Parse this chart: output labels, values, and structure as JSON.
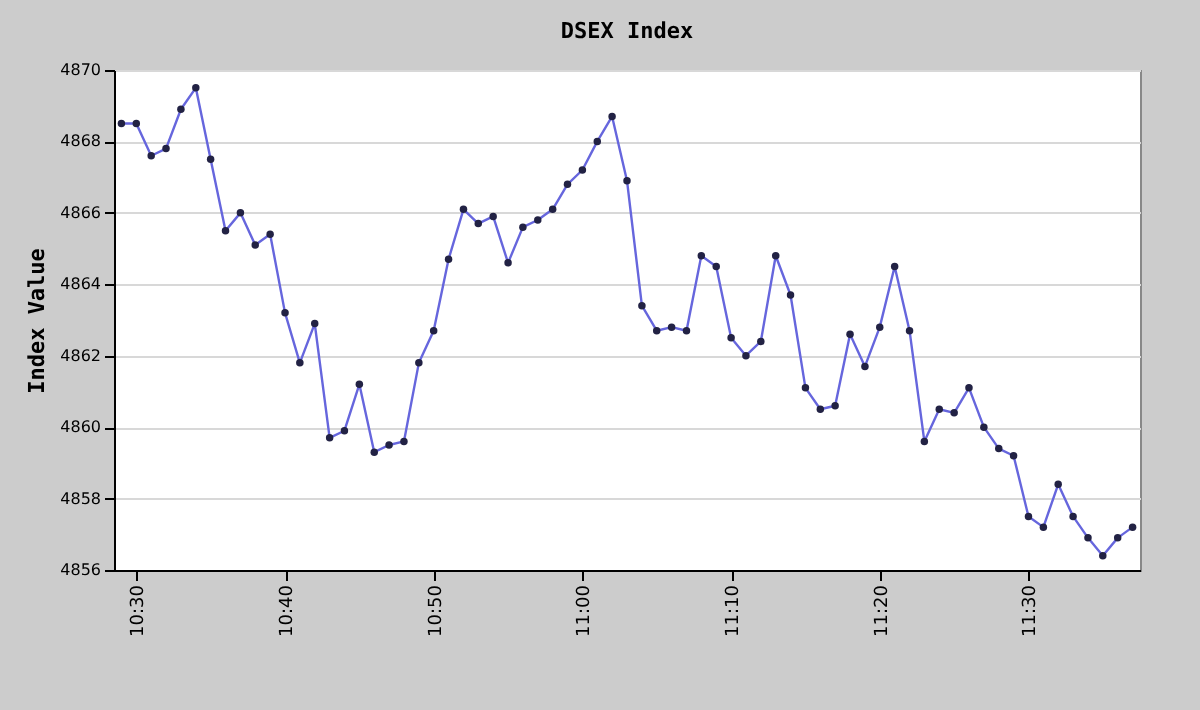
{
  "chart_data": {
    "type": "line",
    "title": "DSEX Index",
    "ylabel": "Index Value",
    "x": [
      10.4833,
      10.5,
      10.5167,
      10.5333,
      10.55,
      10.5667,
      10.5833,
      10.6,
      10.6167,
      10.6333,
      10.65,
      10.6667,
      10.6833,
      10.7,
      10.7167,
      10.7333,
      10.75,
      10.7667,
      10.7833,
      10.8,
      10.8167,
      10.8333,
      10.85,
      10.8667,
      10.8833,
      10.9,
      10.9167,
      10.9333,
      10.95,
      10.9667,
      10.9833,
      11,
      11.0167,
      11.0333,
      11.05,
      11.0667,
      11.0833,
      11.1,
      11.1167,
      11.1333,
      11.15,
      11.1667,
      11.1833,
      11.2,
      11.2167,
      11.2333,
      11.25,
      11.2667,
      11.2833,
      11.3,
      11.3167,
      11.3333,
      11.35,
      11.3667,
      11.3833,
      11.4,
      11.4167,
      11.4333,
      11.45,
      11.4667,
      11.4833,
      11.5,
      11.5167,
      11.5333,
      11.55,
      11.5667,
      11.5833,
      11.6,
      11.6167
    ],
    "series": [
      {
        "color": "#6666dd",
        "values": [
          4868.5,
          4868.5,
          4867.6,
          4867.8,
          4868.9,
          4869.5,
          4867.5,
          4865.5,
          4866.0,
          4865.1,
          4865.4,
          4863.2,
          4861.8,
          4862.9,
          4859.7,
          4859.9,
          4861.2,
          4859.3,
          4859.5,
          4859.6,
          4861.8,
          4862.7,
          4864.7,
          4866.1,
          4865.7,
          4865.9,
          4864.6,
          4865.6,
          4865.8,
          4866.1,
          4866.8,
          4867.2,
          4868.0,
          4868.7,
          4866.9,
          4863.4,
          4862.7,
          4862.8,
          4862.7,
          4864.8,
          4864.5,
          4862.5,
          4862.0,
          4862.4,
          4864.8,
          4863.7,
          4861.1,
          4860.5,
          4860.6,
          4862.6,
          4861.7,
          4862.8,
          4864.5,
          4862.7,
          4859.6,
          4860.5,
          4860.4,
          4861.1,
          4860.0,
          4859.4,
          4859.2,
          4857.5,
          4857.2,
          4858.4,
          4857.5,
          4856.9,
          4856.4,
          4856.9,
          4857.2
        ]
      }
    ],
    "xlim": [
      10.475,
      11.625
    ],
    "xticks": [
      {
        "value": 10.5,
        "label": "10:30"
      },
      {
        "value": 10.6667,
        "label": "10:40"
      },
      {
        "value": 10.8333,
        "label": "10:50"
      },
      {
        "value": 11,
        "label": "11:00"
      },
      {
        "value": 11.1667,
        "label": "11:10"
      },
      {
        "value": 11.3333,
        "label": "11:20"
      },
      {
        "value": 11.5,
        "label": "11:30"
      }
    ],
    "ylim": [
      4856,
      4870
    ],
    "yticks": [
      4856,
      4858,
      4860,
      4862,
      4864,
      4866,
      4868,
      4870
    ],
    "grid": "y",
    "marker": "circle",
    "line_style": "solid"
  }
}
